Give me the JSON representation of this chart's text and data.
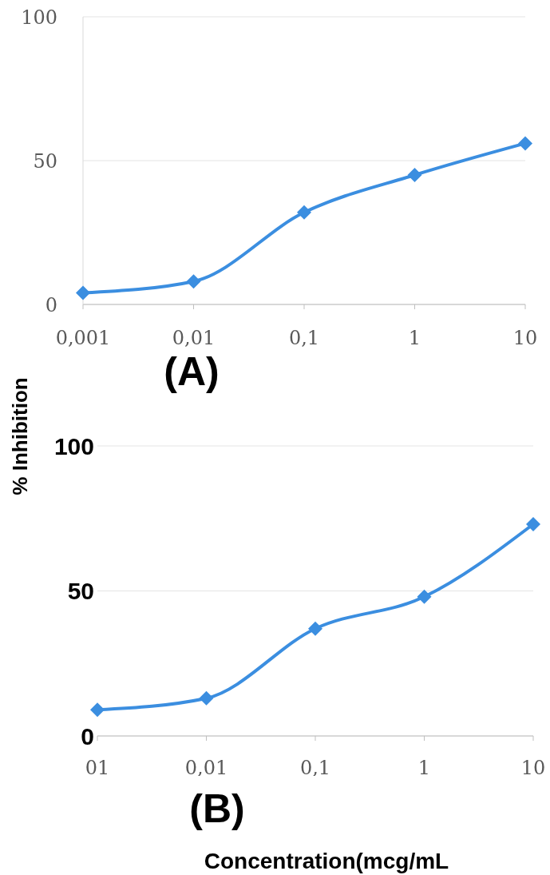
{
  "chart_data": [
    {
      "type": "line",
      "categories": [
        "0,001",
        "0,01",
        "0,1",
        "1",
        "10"
      ],
      "values": [
        4,
        8,
        32,
        45,
        56
      ],
      "color": "#3b8ee0",
      "ylim": [
        0,
        100
      ],
      "yticks": [
        0,
        50,
        100
      ],
      "grid": "y",
      "marker": "diamond",
      "annotations": [
        "(A)"
      ]
    },
    {
      "type": "line",
      "categories": [
        "01",
        "0,01",
        "0,1",
        "1",
        "10"
      ],
      "values": [
        9,
        13,
        37,
        48,
        73
      ],
      "color": "#3b8ee0",
      "ylim": [
        0,
        100
      ],
      "yticks": [
        0,
        50,
        100
      ],
      "grid": "y",
      "marker": "diamond",
      "xlabel": "Concentration(mcg/mL",
      "ylabel": "% Inhibition",
      "annotations": [
        "(B)"
      ]
    }
  ]
}
